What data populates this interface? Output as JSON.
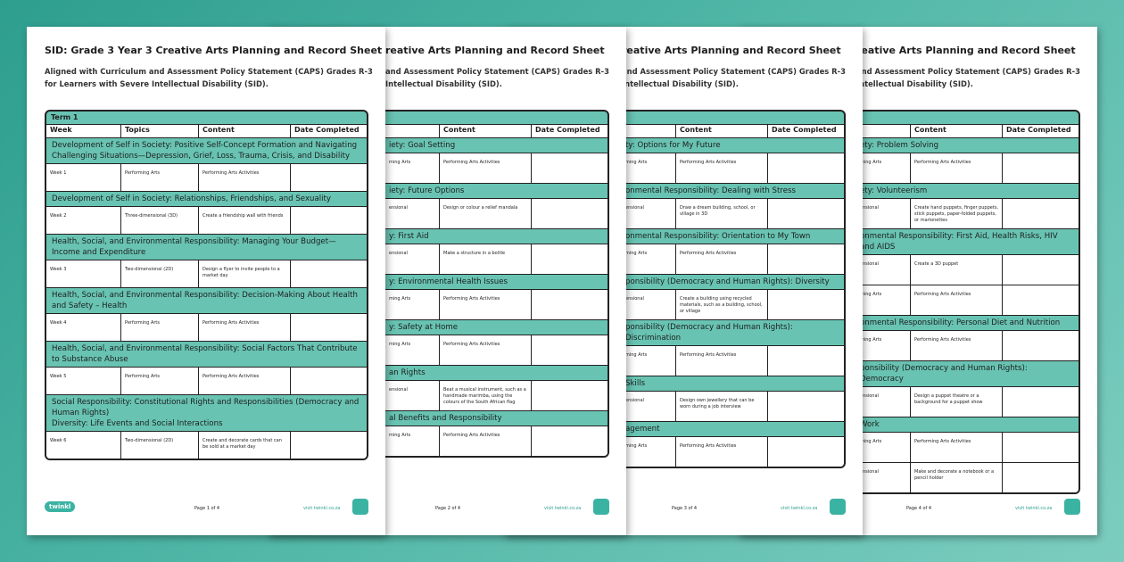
{
  "pages": [
    {
      "title": "SID: Grade 3 Year 3 Creative Arts Planning and Record Sheet",
      "subtitle": [
        "Aligned with Curriculum and Assessment Policy Statement (CAPS) Grades R-3",
        "for Learners with Severe Intellectual Disability (SID)."
      ],
      "table": {
        "term": "Term 1",
        "headers": {
          "week": "Week",
          "topic": "Topics",
          "content": "Content",
          "date": "Date Completed"
        },
        "rows": [
          {
            "section": "Development of Self in Society: Positive Self-Concept Formation and Navigating Challenging Situations—Depression, Grief, Loss, Trauma, Crisis, and Disability"
          },
          {
            "week": "Week 1",
            "topic": "Performing Arts",
            "content": "Performing Arts Activities"
          },
          {
            "section": "Development of Self in Society: Relationships, Friendships, and Sexuality"
          },
          {
            "week": "Week 2",
            "topic": "Three-dimensional (3D)",
            "content": "Create a friendship wall with friends"
          },
          {
            "section": "Health, Social, and Environmental Responsibility: Managing Your Budget—Income and Expenditure"
          },
          {
            "week": "Week 3",
            "topic": "Two-dimensional (2D)",
            "content": "Design a flyer to invite people to a market day"
          },
          {
            "section": "Health, Social, and Environmental Responsibility: Decision-Making About Health and Safety – Health"
          },
          {
            "week": "Week 4",
            "topic": "Performing Arts",
            "content": "Performing Arts Activities"
          },
          {
            "section": "Health, Social, and Environmental Responsibility: Social Factors That Contribute to Substance Abuse"
          },
          {
            "week": "Week 5",
            "topic": "Performing Arts",
            "content": "Performing Arts Activities"
          },
          {
            "section": "Social Responsibility: Constitutional Rights and Responsibilities (Democracy and Human Rights)",
            "subsection": "Diversity: Life Events and Social Interactions"
          },
          {
            "week": "Week 6",
            "topic": "Two-dimensional (2D)",
            "content": "Create and decorate cards that can be sold at a market day"
          }
        ]
      },
      "footer": {
        "logo": "twinkl",
        "page": "Page 1 of 4",
        "url": "visit twinkl.co.za"
      }
    },
    {
      "title": "reative Arts Planning and Record Sheet",
      "subtitle": [
        "and Assessment Policy Statement (CAPS) Grades R-3",
        "Intellectual Disability (SID)."
      ],
      "table": {
        "headers": {
          "content": "Content",
          "date": "Date Completed"
        },
        "rows": [
          {
            "section": "iety: Goal Setting"
          },
          {
            "topic": "ming Arts",
            "content": "Performing Arts Activities"
          },
          {
            "section": "iety: Future Options"
          },
          {
            "topic": "ensional",
            "content": "Design or colour a relief mandala"
          },
          {
            "section": "y: First Aid"
          },
          {
            "topic": "ensional",
            "content": "Make a structure in a bottle"
          },
          {
            "section": "y: Environmental Health Issues"
          },
          {
            "topic": "ming Arts",
            "content": "Performing Arts Activities"
          },
          {
            "section": "y: Safety at Home"
          },
          {
            "topic": "ming Arts",
            "content": "Performing Arts Activities"
          },
          {
            "section": "an Rights"
          },
          {
            "topic": "ensional",
            "content": "Beat a musical instrument, such as a handmade marimba, using the colours of the South African flag"
          },
          {
            "section": "al Benefits and Responsibility"
          },
          {
            "topic": "ming Arts",
            "content": "Performing Arts Activities"
          }
        ]
      },
      "footer": {
        "page": "Page 2 of 4",
        "url": "visit twinkl.co.za"
      }
    },
    {
      "title": "reative Arts Planning and Record Sheet",
      "subtitle": [
        "and Assessment Policy Statement (CAPS) Grades R-3",
        "Intellectual Disability (SID)."
      ],
      "table": {
        "headers": {
          "content": "Content",
          "date": "Date Completed"
        },
        "rows": [
          {
            "section": "ty: Options for My Future"
          },
          {
            "topic": "ming Arts",
            "content": "Performing Arts Activities"
          },
          {
            "section": "onmental Responsibility: Dealing with Stress"
          },
          {
            "topic": "ensional",
            "content": "Draw a dream building, school, or village in 3D"
          },
          {
            "section": "onmental Responsibility: Orientation to My Town"
          },
          {
            "topic": "ming Arts",
            "content": "Performing Arts Activities"
          },
          {
            "section": "ponsibility (Democracy and Human Rights): Diversity"
          },
          {
            "topic": "ensional",
            "content": "Create a building using recycled materials, such as a building, school, or village"
          },
          {
            "section": "ponsibility (Democracy and Human Rights): Discrimination"
          },
          {
            "topic": "ming Arts",
            "content": "Performing Arts Activities"
          },
          {
            "section": "Skills"
          },
          {
            "topic": "ensional",
            "content": "Design own jewellery that can be worn during a job interview"
          },
          {
            "section": "agement"
          },
          {
            "topic": "ming Arts",
            "content": "Performing Arts Activities"
          }
        ]
      },
      "footer": {
        "page": "Page 3 of 4",
        "url": "visit twinkl.co.za"
      }
    },
    {
      "title": "reative Arts Planning and Record Sheet",
      "subtitle": [
        "and Assessment Policy Statement (CAPS) Grades R-3",
        "Intellectual Disability (SID)."
      ],
      "table": {
        "headers": {
          "content": "Content",
          "date": "Date Completed"
        },
        "rows": [
          {
            "section": "ety: Problem Solving"
          },
          {
            "topic": "ming Arts",
            "content": "Performing Arts Activities"
          },
          {
            "section": "ety: Volunteerism"
          },
          {
            "topic": "ensional",
            "content": "Create hand puppets, finger puppets, stick puppets, paper-folded puppets, or marionettes"
          },
          {
            "section": "onmental Responsibility: First Aid, Health Risks, HIV and AIDS"
          },
          {
            "topic": "ensional",
            "content": "Create a 3D puppet"
          },
          {
            "topic": "ming Arts",
            "content": "Performing Arts Activities"
          },
          {
            "section": "onmental Responsibility: Personal Diet and Nutrition"
          },
          {
            "topic": "ming Arts",
            "content": "Performing Arts Activities"
          },
          {
            "section": "ponsibility (Democracy and Human Rights): Democracy"
          },
          {
            "topic": "ensional",
            "content": "Design a puppet theatre or a background for a puppet show"
          },
          {
            "section": "Work"
          },
          {
            "topic": "ming Arts",
            "content": "Performing Arts Activities"
          },
          {
            "topic": "ensional",
            "content": "Make and decorate a notebook or a pencil holder"
          }
        ]
      },
      "footer": {
        "page": "Page 4 of 4",
        "url": "visit twinkl.co.za"
      }
    }
  ]
}
